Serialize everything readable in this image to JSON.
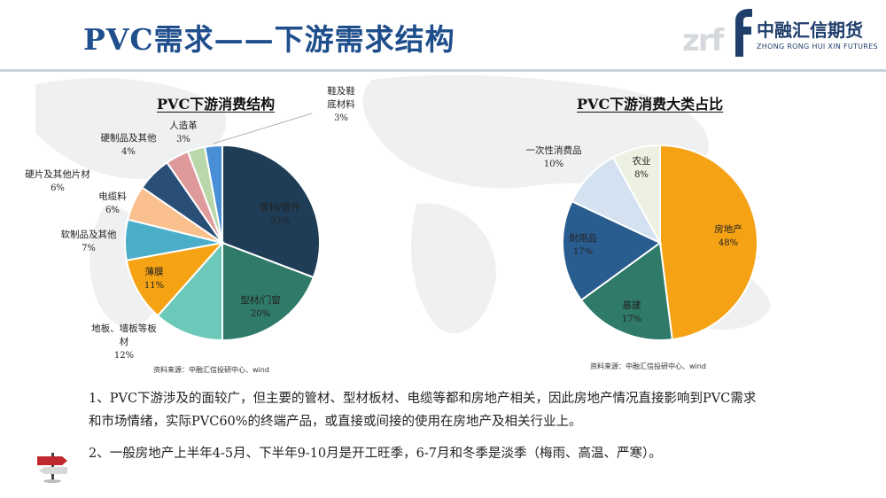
{
  "slide": {
    "title": "PVC需求——下游需求结构",
    "logo_cn": "中融汇信期货",
    "logo_en": "ZHONG RONG HUI XIN FUTURES",
    "logo_ghost": "zrf"
  },
  "chart_data": [
    {
      "type": "pie",
      "title": "PVC下游消费结构",
      "source": "资料来源：中融汇信投研中心、wind",
      "slices": [
        {
          "label": "管材/管件",
          "value": 32,
          "text": "32%",
          "color": "#1f3d56"
        },
        {
          "label": "型材/门窗",
          "value": 20,
          "text": "20%",
          "color": "#2f7a68"
        },
        {
          "label": "地板、墙板等板材",
          "value": 12,
          "text": "12%",
          "color": "#6cc9b9"
        },
        {
          "label": "薄膜",
          "value": 11,
          "text": "11%",
          "color": "#f5a214"
        },
        {
          "label": "软制品及其他",
          "value": 7,
          "text": "7%",
          "color": "#4aaec9"
        },
        {
          "label": "电缆料",
          "value": 6,
          "text": "6%",
          "color": "#f9c08e"
        },
        {
          "label": "硬片及其他片材",
          "value": 6,
          "text": "6%",
          "color": "#2a4f77"
        },
        {
          "label": "硬制品及其他",
          "value": 4,
          "text": "4%",
          "color": "#de9a9a"
        },
        {
          "label": "人造革",
          "value": 3,
          "text": "3%",
          "color": "#b9d7a8"
        },
        {
          "label": "鞋及鞋底材料",
          "value": 3,
          "text": "3%",
          "color": "#4a8fd6"
        }
      ]
    },
    {
      "type": "pie",
      "title": "PVC下游消费大类占比",
      "source": "资料来源：中融汇信投研中心、wind",
      "slices": [
        {
          "label": "房地产",
          "value": 48,
          "text": "48%",
          "color": "#f5a214"
        },
        {
          "label": "基建",
          "value": 17,
          "text": "17%",
          "color": "#2f7a68"
        },
        {
          "label": "耐用品",
          "value": 17,
          "text": "17%",
          "color": "#2a5d8f"
        },
        {
          "label": "一次性消费品",
          "value": 10,
          "text": "10%",
          "color": "#d3e1f1"
        },
        {
          "label": "农业",
          "value": 8,
          "text": "8%",
          "color": "#edf1e2"
        }
      ]
    }
  ],
  "body": {
    "p1_line1": "1、PVC下游涉及的面较广，但主要的管材、型材板材、电缆等都和房地产相关，因此房地产情况直接影响到PVC需求",
    "p1_line2": "和市场情绪，实际PVC60%的终端产品，或直接或间接的使用在房地产及相关行业上。",
    "p2": "2、一般房地产上半年4-5月、下半年9-10月是开工旺季，6-7月和冬季是淡季（梅雨、高温、严寒）。"
  }
}
